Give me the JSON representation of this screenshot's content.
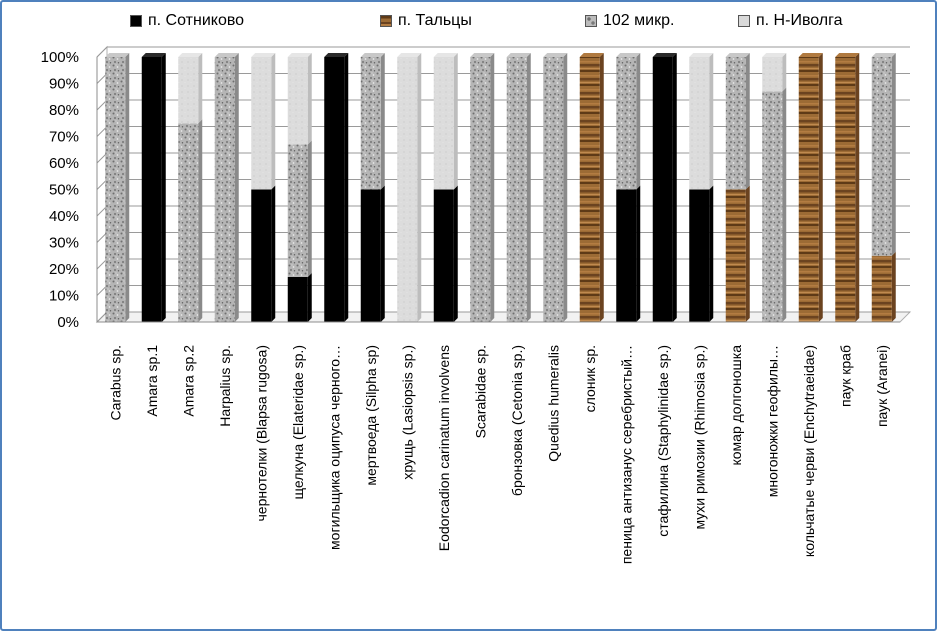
{
  "chart_data": {
    "type": "bar",
    "stacked": "percent",
    "ylim": [
      0,
      100
    ],
    "yticks": [
      "0%",
      "10%",
      "20%",
      "30%",
      "40%",
      "50%",
      "60%",
      "70%",
      "80%",
      "90%",
      "100%"
    ],
    "categories": [
      "Carabus sp.",
      "Amara sp.1",
      "Amara sp.2",
      "Harpalius sp.",
      "чернотелки (Blapsa rugosa)",
      "щелкуна (Elateridae sp.)",
      "могильщика оципуса черного…",
      "мертвоеда (Silpha sp)",
      "хрущь (Lasiopsis sp.)",
      "Eodorcadion carinatum involvens",
      "Scarabidae sp.",
      "бронзовка (Cetonia sp.)",
      "Quedius humeralis",
      "слоник sp.",
      "пеница антизанус серебристый…",
      "стафилина (Staphylinidae sp.)",
      "мухи римозии (Rhimosia sp.)",
      "комар долгоношка",
      "многоножки геофилы…",
      "кольчатые черви (Enchytraeidae)",
      "паук краб",
      "паук (Aranei)"
    ],
    "series": [
      {
        "name": "п. Сотниково",
        "color": "#000000",
        "pattern": "solid",
        "values": [
          0,
          100,
          0,
          0,
          50,
          17,
          100,
          50,
          0,
          50,
          0,
          0,
          0,
          0,
          50,
          100,
          50,
          0,
          0,
          0,
          0,
          0
        ]
      },
      {
        "name": "п. Тальцы",
        "color": "#8b5a2b",
        "pattern": "wood",
        "values": [
          0,
          0,
          0,
          0,
          0,
          0,
          0,
          0,
          0,
          0,
          0,
          0,
          0,
          100,
          0,
          0,
          0,
          50,
          0,
          100,
          100,
          25
        ]
      },
      {
        "name": "102 микр.",
        "color": "#a6a6a6",
        "pattern": "granite",
        "values": [
          100,
          0,
          75,
          100,
          0,
          50,
          0,
          50,
          0,
          0,
          100,
          100,
          100,
          0,
          50,
          0,
          0,
          50,
          87,
          0,
          0,
          75
        ]
      },
      {
        "name": "п. Н-Иволга",
        "color": "#d9d9d9",
        "pattern": "light",
        "values": [
          0,
          0,
          25,
          0,
          50,
          33,
          0,
          0,
          100,
          50,
          0,
          0,
          0,
          0,
          0,
          0,
          50,
          0,
          13,
          0,
          0,
          0
        ]
      }
    ],
    "legend_position": "top",
    "grid": true
  }
}
